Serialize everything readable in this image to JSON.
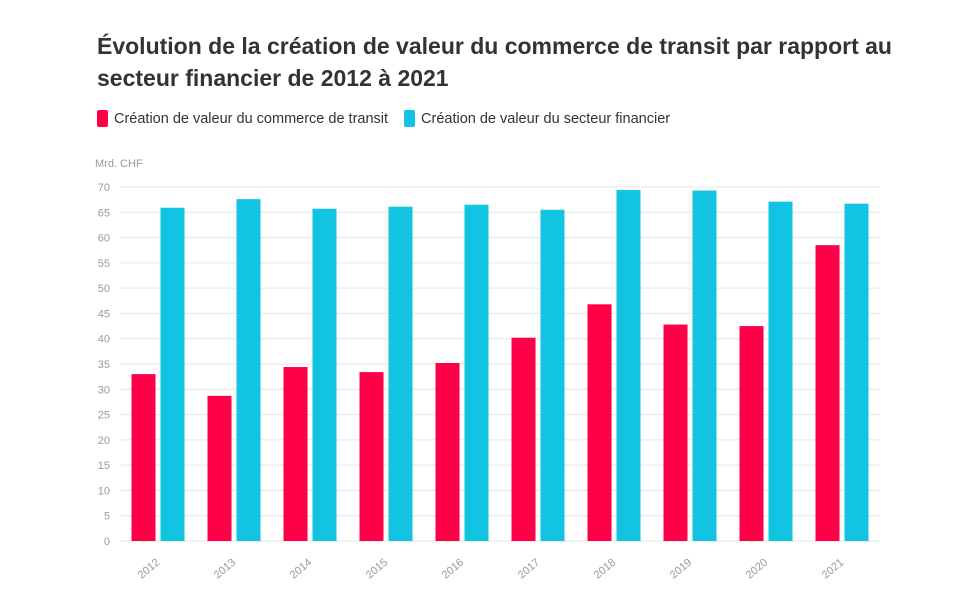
{
  "title": "Évolution de la création de valeur du commerce de transit par rapport au secteur financier de 2012 à 2021",
  "unit_label": "Mrd. CHF",
  "colors": {
    "transit": "#ff0048",
    "financier": "#10c4e2",
    "grid": "#e6e6e6",
    "tick_text": "#999999"
  },
  "chart_data": {
    "type": "bar",
    "title": "Évolution de la création de valeur du commerce de transit par rapport au secteur financier de 2012 à 2021",
    "ylabel": "Mrd. CHF",
    "xlabel": "",
    "ylim": [
      0,
      70
    ],
    "yticks": [
      0,
      5,
      10,
      15,
      20,
      25,
      30,
      35,
      40,
      45,
      50,
      55,
      60,
      65,
      70
    ],
    "grid": true,
    "legend_position": "top-left",
    "categories": [
      "2012",
      "2013",
      "2014",
      "2015",
      "2016",
      "2017",
      "2018",
      "2019",
      "2020",
      "2021"
    ],
    "series": [
      {
        "name": "Création de valeur du commerce de transit",
        "color": "#ff0048",
        "values": [
          33.0,
          28.7,
          34.4,
          33.4,
          35.2,
          40.2,
          46.8,
          42.8,
          42.5,
          58.5
        ]
      },
      {
        "name": "Création de valeur du secteur financier",
        "color": "#10c4e2",
        "values": [
          65.9,
          67.6,
          65.7,
          66.1,
          66.5,
          65.5,
          69.4,
          69.3,
          67.1,
          66.7
        ]
      }
    ]
  }
}
